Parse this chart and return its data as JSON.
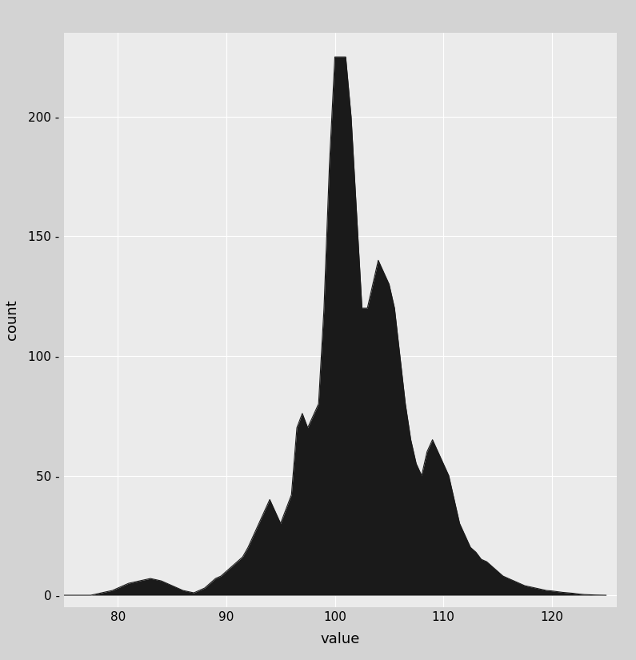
{
  "title": "",
  "xlabel": "value",
  "ylabel": "count",
  "bg_color": "#EBEBEB",
  "panel_bg": "#EBEBEB",
  "area_color": "#1a1a1a",
  "area_outline": "#1a1a1a",
  "grid_color": "#FFFFFF",
  "xlim": [
    75,
    126
  ],
  "ylim": [
    -5,
    235
  ],
  "xticks": [
    80,
    90,
    100,
    110,
    120
  ],
  "yticks": [
    0,
    50,
    100,
    150,
    200
  ],
  "x": [
    75.0,
    75.5,
    76.0,
    76.5,
    77.0,
    77.5,
    78.0,
    78.5,
    79.0,
    79.5,
    80.0,
    80.5,
    81.0,
    81.5,
    82.0,
    82.5,
    83.0,
    83.5,
    84.0,
    84.5,
    85.0,
    85.5,
    86.0,
    86.5,
    87.0,
    87.5,
    88.0,
    88.5,
    89.0,
    89.5,
    90.0,
    90.5,
    91.0,
    91.5,
    92.0,
    92.5,
    93.0,
    93.5,
    94.0,
    94.5,
    95.0,
    95.5,
    96.0,
    96.5,
    97.0,
    97.5,
    98.0,
    98.5,
    99.0,
    99.5,
    100.0,
    100.5,
    101.0,
    101.5,
    102.0,
    102.5,
    103.0,
    103.5,
    104.0,
    104.5,
    105.0,
    105.5,
    106.0,
    106.5,
    107.0,
    107.5,
    108.0,
    108.5,
    109.0,
    109.5,
    110.0,
    110.5,
    111.0,
    111.5,
    112.0,
    112.5,
    113.0,
    113.5,
    114.0,
    114.5,
    115.0,
    115.5,
    116.0,
    116.5,
    117.0,
    117.5,
    118.0,
    118.5,
    119.0,
    119.5,
    120.0,
    120.5,
    121.0,
    121.5,
    122.0,
    122.5,
    123.0,
    123.5,
    124.0,
    124.5,
    125.0
  ],
  "y": [
    0,
    0,
    0,
    0,
    0,
    0,
    0.5,
    1,
    1.5,
    2,
    3,
    4,
    5,
    5.5,
    6,
    6.5,
    7,
    6.5,
    6,
    5,
    4,
    3,
    2,
    1.5,
    1.0,
    2.0,
    3.0,
    5.0,
    7.0,
    8.0,
    10.0,
    12.0,
    14.0,
    16.0,
    20.0,
    25.0,
    30.0,
    35.0,
    40.0,
    35.0,
    30.0,
    36.0,
    42.0,
    70.0,
    76.0,
    70.0,
    75.0,
    80.0,
    120.0,
    180.0,
    225.0,
    225.0,
    225.0,
    200.0,
    160.0,
    120.0,
    120.0,
    130.0,
    140.0,
    135.0,
    130.0,
    120.0,
    100.0,
    80.0,
    65.0,
    55.0,
    50.0,
    60.0,
    65.0,
    60.0,
    55.0,
    50.0,
    40.0,
    30.0,
    25.0,
    20.0,
    18.0,
    15.0,
    14.0,
    12.0,
    10.0,
    8.0,
    7.0,
    6.0,
    5.0,
    4.0,
    3.5,
    3.0,
    2.5,
    2.0,
    1.8,
    1.5,
    1.2,
    1.0,
    0.8,
    0.5,
    0.3,
    0.2,
    0.1,
    0.05,
    0
  ]
}
